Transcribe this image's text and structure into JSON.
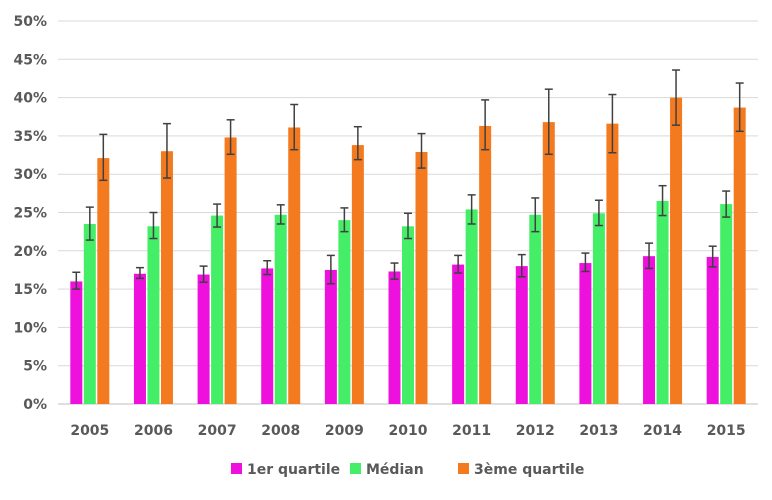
{
  "chart_data": {
    "type": "bar",
    "categories": [
      "2005",
      "2006",
      "2007",
      "2008",
      "2009",
      "2010",
      "2011",
      "2012",
      "2013",
      "2014",
      "2015"
    ],
    "y_tick_labels": [
      "0%",
      "5%",
      "10%",
      "15%",
      "20%",
      "25%",
      "30%",
      "35%",
      "40%",
      "45%",
      "50%"
    ],
    "ylim": [
      0,
      50
    ],
    "grid": true,
    "legend_position": "bottom",
    "series": [
      {
        "name": "1er quartile",
        "color": "#ee11dd",
        "values": [
          16.0,
          17.0,
          16.9,
          17.7,
          17.5,
          17.3,
          18.2,
          18.0,
          18.4,
          19.3,
          19.2
        ],
        "error_low": [
          15.0,
          16.4,
          15.9,
          16.9,
          15.7,
          16.3,
          17.1,
          16.6,
          17.3,
          17.7,
          17.9
        ],
        "error_high": [
          17.2,
          17.8,
          18.0,
          18.7,
          19.4,
          18.4,
          19.4,
          19.5,
          19.7,
          21.0,
          20.6
        ]
      },
      {
        "name": "Médian",
        "color": "#44ee66",
        "values": [
          23.5,
          23.2,
          24.6,
          24.7,
          24.0,
          23.2,
          25.4,
          24.7,
          24.9,
          26.5,
          26.1
        ],
        "error_low": [
          21.4,
          21.6,
          23.1,
          23.5,
          22.5,
          21.6,
          23.5,
          22.5,
          23.3,
          24.6,
          24.4
        ],
        "error_high": [
          25.7,
          25.0,
          26.1,
          26.0,
          25.6,
          24.9,
          27.3,
          26.9,
          26.6,
          28.5,
          27.8
        ]
      },
      {
        "name": "3ème quartile",
        "color": "#f47a20",
        "values": [
          32.1,
          33.0,
          34.8,
          36.1,
          33.8,
          32.9,
          36.3,
          36.8,
          36.6,
          40.0,
          38.7
        ],
        "error_low": [
          29.2,
          29.5,
          32.6,
          33.2,
          31.9,
          30.8,
          33.2,
          32.6,
          32.8,
          36.4,
          35.6
        ],
        "error_high": [
          35.2,
          36.6,
          37.1,
          39.1,
          36.2,
          35.3,
          39.7,
          41.1,
          40.4,
          43.6,
          41.9
        ]
      }
    ]
  }
}
